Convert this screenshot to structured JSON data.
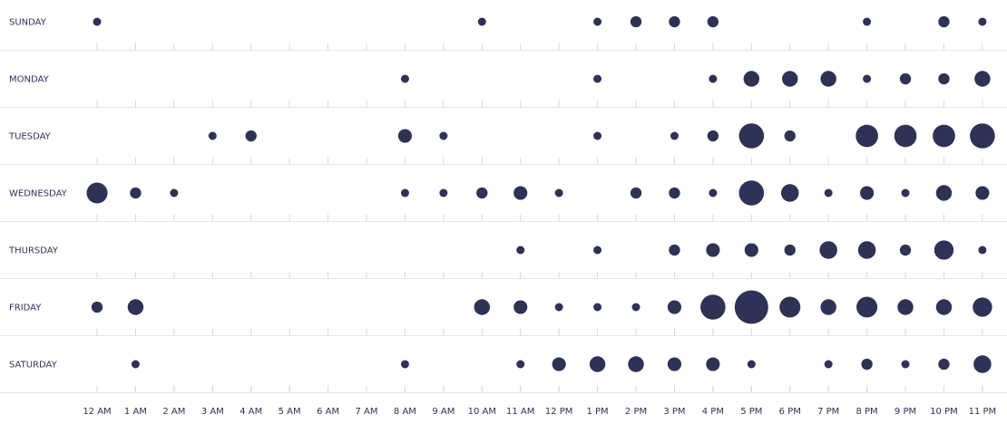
{
  "chart_data": {
    "type": "scatter",
    "subtype": "punchcard",
    "color": "#2d3256",
    "days": [
      "SUNDAY",
      "MONDAY",
      "TUESDAY",
      "WEDNESDAY",
      "THURSDAY",
      "FRIDAY",
      "SATURDAY"
    ],
    "hours": [
      "12 AM",
      "1 AM",
      "2 AM",
      "3 AM",
      "4 AM",
      "5 AM",
      "6 AM",
      "7 AM",
      "8 AM",
      "9 AM",
      "10 AM",
      "11 AM",
      "12 PM",
      "1 PM",
      "2 PM",
      "3 PM",
      "4 PM",
      "5 PM",
      "6 PM",
      "7 PM",
      "8 PM",
      "9 PM",
      "10 PM",
      "11 PM"
    ],
    "values": [
      [
        1,
        0,
        0,
        0,
        0,
        0,
        0,
        0,
        0,
        0,
        1,
        0,
        0,
        1,
        2,
        2,
        2,
        0,
        0,
        0,
        1,
        0,
        2,
        1
      ],
      [
        0,
        0,
        0,
        0,
        0,
        0,
        0,
        0,
        1,
        0,
        0,
        0,
        0,
        1,
        0,
        0,
        1,
        4,
        4,
        4,
        1,
        2,
        2,
        4
      ],
      [
        0,
        0,
        0,
        1,
        2,
        0,
        0,
        0,
        3,
        1,
        0,
        0,
        0,
        1,
        0,
        1,
        2,
        10,
        2,
        0,
        8,
        8,
        8,
        10
      ],
      [
        7,
        2,
        1,
        0,
        0,
        0,
        0,
        0,
        1,
        1,
        2,
        3,
        1,
        0,
        2,
        2,
        1,
        10,
        5,
        1,
        3,
        1,
        4,
        3
      ],
      [
        0,
        0,
        0,
        0,
        0,
        0,
        0,
        0,
        0,
        0,
        0,
        1,
        0,
        1,
        0,
        2,
        3,
        3,
        2,
        5,
        5,
        2,
        6,
        1
      ],
      [
        2,
        4,
        0,
        0,
        0,
        0,
        0,
        0,
        0,
        0,
        4,
        3,
        1,
        1,
        1,
        3,
        10,
        18,
        7,
        4,
        7,
        4,
        4,
        6
      ],
      [
        0,
        1,
        0,
        0,
        0,
        0,
        0,
        0,
        1,
        0,
        0,
        1,
        3,
        4,
        4,
        3,
        3,
        1,
        0,
        1,
        2,
        1,
        2,
        5
      ]
    ]
  }
}
